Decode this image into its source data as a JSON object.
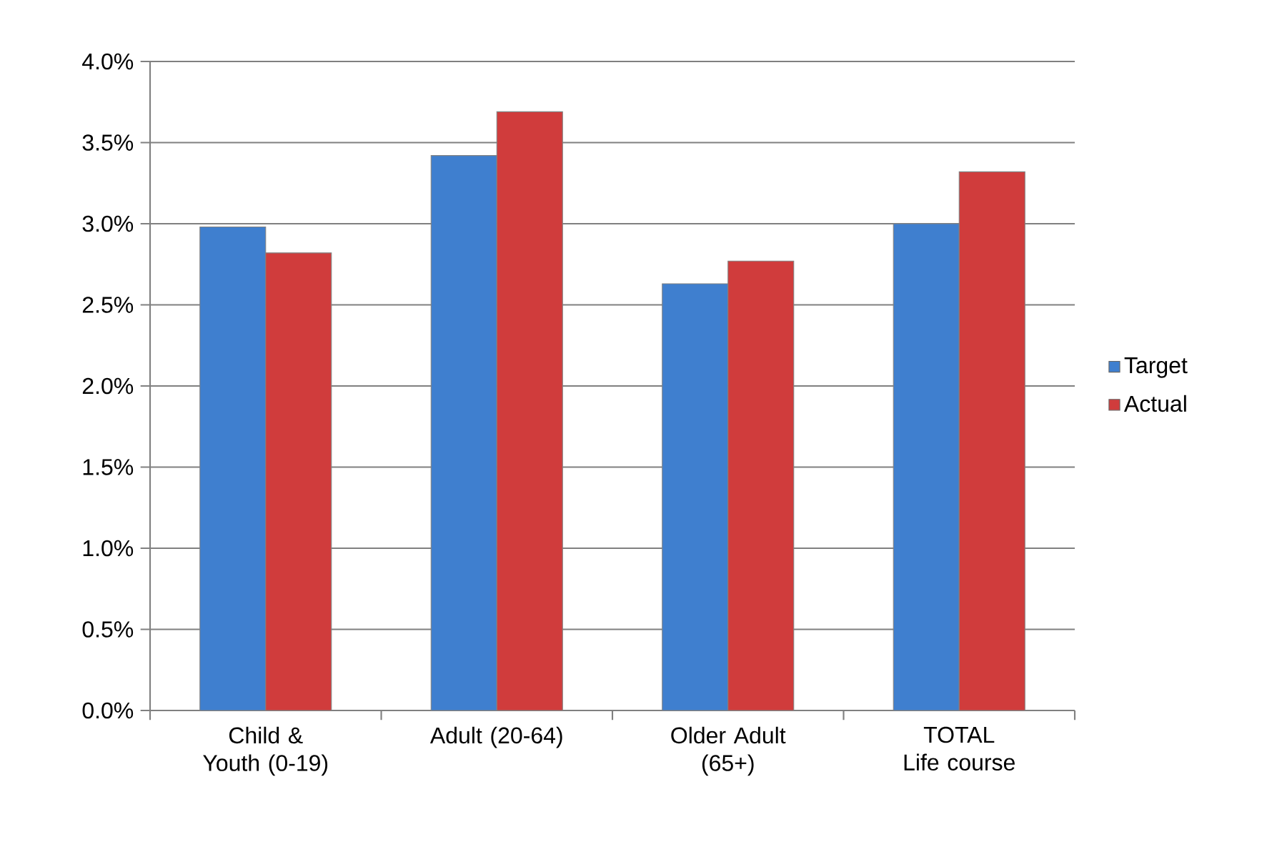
{
  "chart_data": {
    "type": "bar",
    "categories": [
      "Child & Youth (0-19)",
      "Adult (20-64)",
      "Older Adult (65+)",
      "TOTAL Life course"
    ],
    "series": [
      {
        "name": "Target",
        "color": "#3f7fcf",
        "values": [
          2.98,
          3.42,
          2.63,
          3.0
        ]
      },
      {
        "name": "Actual",
        "color": "#d03c3c",
        "values": [
          2.82,
          3.69,
          2.77,
          3.32
        ]
      }
    ],
    "ylim": [
      0,
      4
    ],
    "yticks": [
      {
        "value": 0,
        "label": "0.0%"
      },
      {
        "value": 0.5,
        "label": "0.5%"
      },
      {
        "value": 1,
        "label": "1.0%"
      },
      {
        "value": 1.5,
        "label": "1.5%"
      },
      {
        "value": 2,
        "label": "2.0%"
      },
      {
        "value": 2.5,
        "label": "2.5%"
      },
      {
        "value": 3,
        "label": "3.0%"
      },
      {
        "value": 3.5,
        "label": "3.5%"
      },
      {
        "value": 4,
        "label": "4.0%"
      }
    ],
    "grid": "y",
    "legend": "right"
  }
}
